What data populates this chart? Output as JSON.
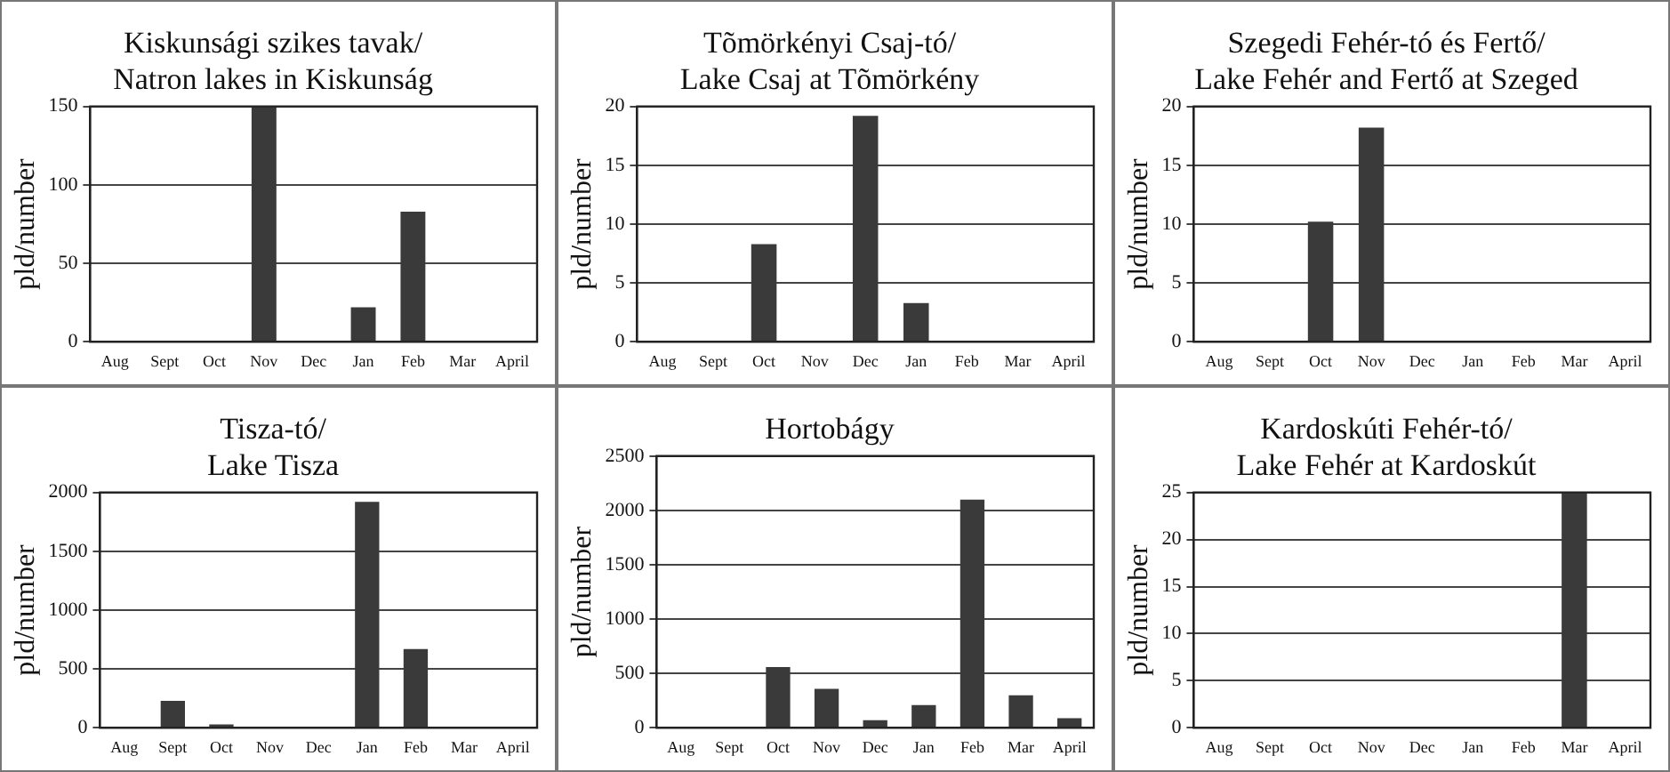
{
  "chart_data": [
    {
      "type": "bar",
      "title": "Kiskunsági szikes tavak/\nNatron lakes in Kiskunság",
      "ylabel": "pld/number",
      "categories": [
        "Aug",
        "Sept",
        "Oct",
        "Nov",
        "Dec",
        "Jan",
        "Feb",
        "Mar",
        "April"
      ],
      "values": [
        0,
        0,
        0,
        150,
        0,
        22,
        83,
        0,
        0
      ],
      "color": "#3a3a3a",
      "ylim": [
        0,
        150
      ],
      "yticks": [
        0,
        50,
        100,
        150
      ],
      "grid": "y"
    },
    {
      "type": "bar",
      "title": "Tõmörkényi Csaj-tó/\nLake Csaj at Tõmörkény",
      "ylabel": "pld/number",
      "categories": [
        "Aug",
        "Sept",
        "Oct",
        "Nov",
        "Dec",
        "Jan",
        "Feb",
        "Mar",
        "April"
      ],
      "values": [
        0,
        0,
        8.3,
        0,
        19.2,
        3.3,
        0,
        0,
        0
      ],
      "color": "#3a3a3a",
      "ylim": [
        0,
        20
      ],
      "yticks": [
        0,
        5,
        10,
        15,
        20
      ],
      "grid": "y"
    },
    {
      "type": "bar",
      "title": "Szegedi Fehér-tó és Fertő/\nLake Fehér and Fertő at Szeged",
      "ylabel": "pld/number",
      "categories": [
        "Aug",
        "Sept",
        "Oct",
        "Nov",
        "Dec",
        "Jan",
        "Feb",
        "Mar",
        "April"
      ],
      "values": [
        0,
        0,
        10.2,
        18.2,
        0,
        0,
        0,
        0,
        0
      ],
      "color": "#3a3a3a",
      "ylim": [
        0,
        20
      ],
      "yticks": [
        0,
        5,
        10,
        15,
        20
      ],
      "grid": "y"
    },
    {
      "type": "bar",
      "title": "Tisza-tó/\nLake Tisza",
      "ylabel": "pld/number",
      "categories": [
        "Aug",
        "Sept",
        "Oct",
        "Nov",
        "Dec",
        "Jan",
        "Feb",
        "Mar",
        "April"
      ],
      "values": [
        0,
        230,
        30,
        0,
        0,
        1920,
        670,
        0,
        0
      ],
      "color": "#3a3a3a",
      "ylim": [
        0,
        2000
      ],
      "yticks": [
        0,
        500,
        1000,
        1500,
        2000
      ],
      "grid": "y"
    },
    {
      "type": "bar",
      "title": "Hortobágy",
      "ylabel": "pld/number",
      "categories": [
        "Aug",
        "Sept",
        "Oct",
        "Nov",
        "Dec",
        "Jan",
        "Feb",
        "Mar",
        "April"
      ],
      "values": [
        0,
        0,
        560,
        360,
        70,
        210,
        2100,
        300,
        90
      ],
      "color": "#3a3a3a",
      "ylim": [
        0,
        2500
      ],
      "yticks": [
        0,
        500,
        1000,
        1500,
        2000,
        2500
      ],
      "grid": "y"
    },
    {
      "type": "bar",
      "title": "Kardoskúti Fehér-tó/\nLake Fehér at Kardoskút",
      "ylabel": "pld/number",
      "categories": [
        "Aug",
        "Sept",
        "Oct",
        "Nov",
        "Dec",
        "Jan",
        "Feb",
        "Mar",
        "April"
      ],
      "values": [
        0,
        0,
        0,
        0,
        0,
        0,
        0,
        25,
        0
      ],
      "color": "#3a3a3a",
      "ylim": [
        0,
        25
      ],
      "yticks": [
        0,
        5,
        10,
        15,
        20,
        25
      ],
      "grid": "y"
    }
  ]
}
